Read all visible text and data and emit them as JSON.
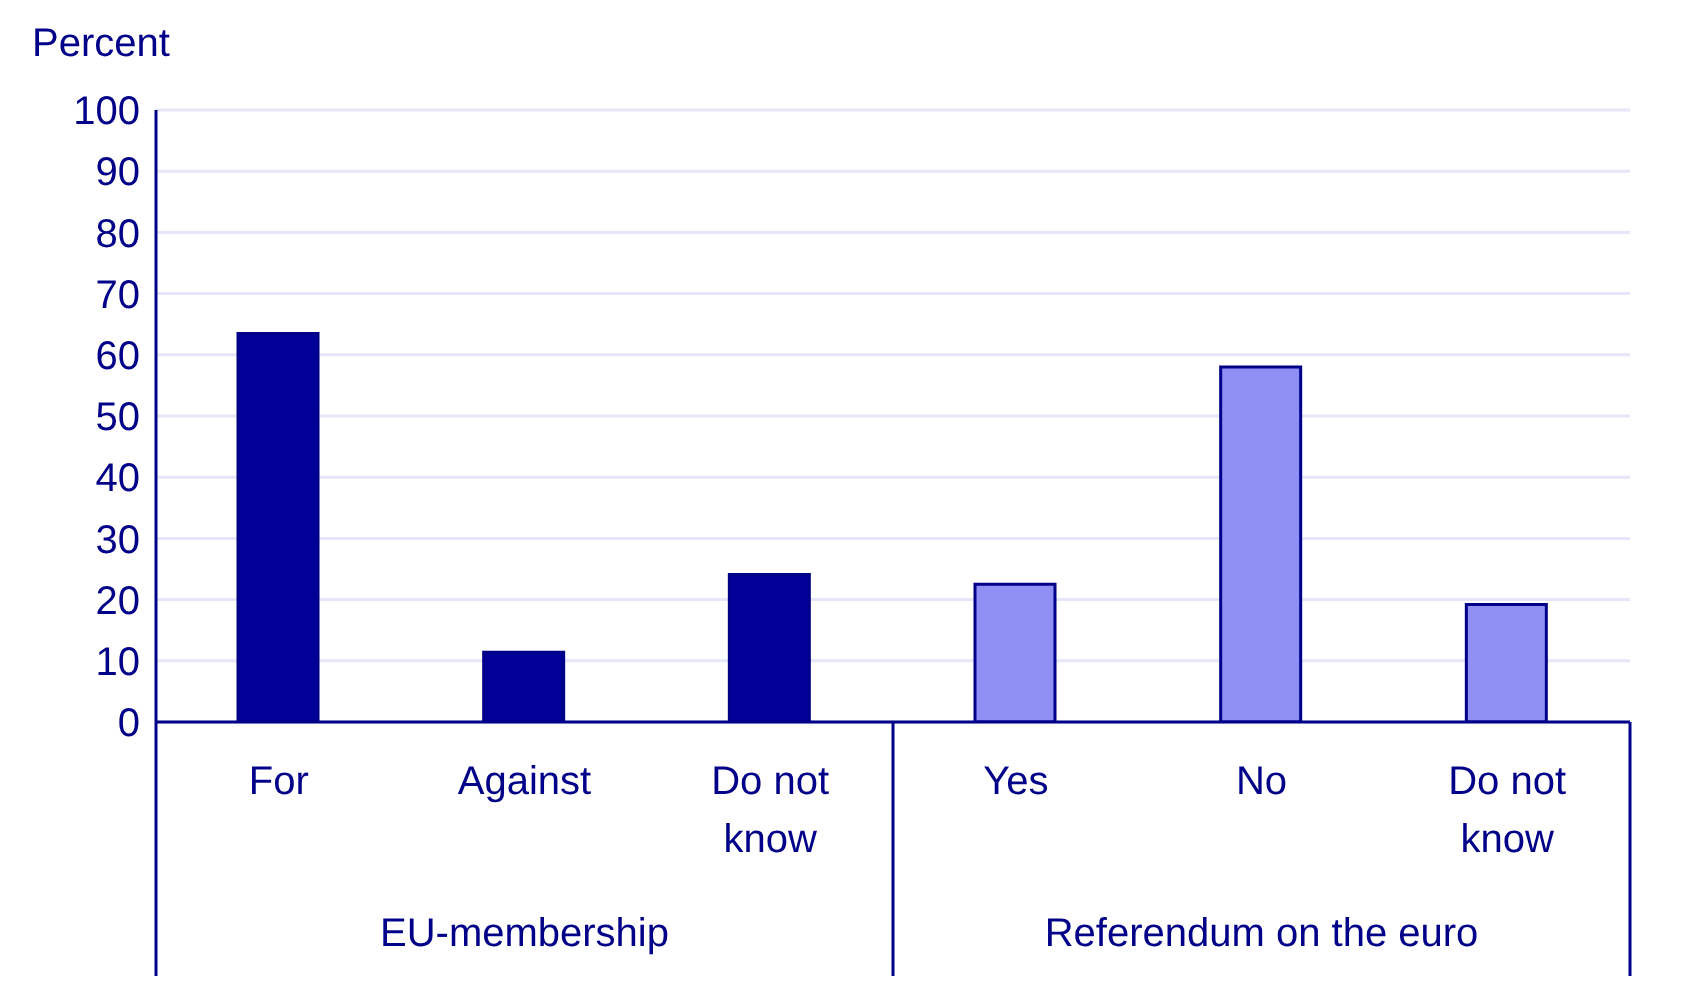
{
  "chart_data": {
    "type": "bar",
    "ylabel": "Percent",
    "categories": [
      "For",
      "Against",
      "Do not know",
      "Yes",
      "No",
      "Do not know"
    ],
    "values": [
      63.5,
      11.4,
      24.1,
      22.5,
      58,
      19.2
    ],
    "colors": [
      "#000099",
      "#000099",
      "#000099",
      "#8f8ff5",
      "#8f8ff5",
      "#8f8ff5"
    ],
    "ylim": [
      0,
      100
    ],
    "yticks": [
      0,
      10,
      20,
      30,
      40,
      50,
      60,
      70,
      80,
      90,
      100
    ],
    "grid": "y",
    "annotations": [
      "EU-membership",
      "Referendum on the euro"
    ]
  }
}
